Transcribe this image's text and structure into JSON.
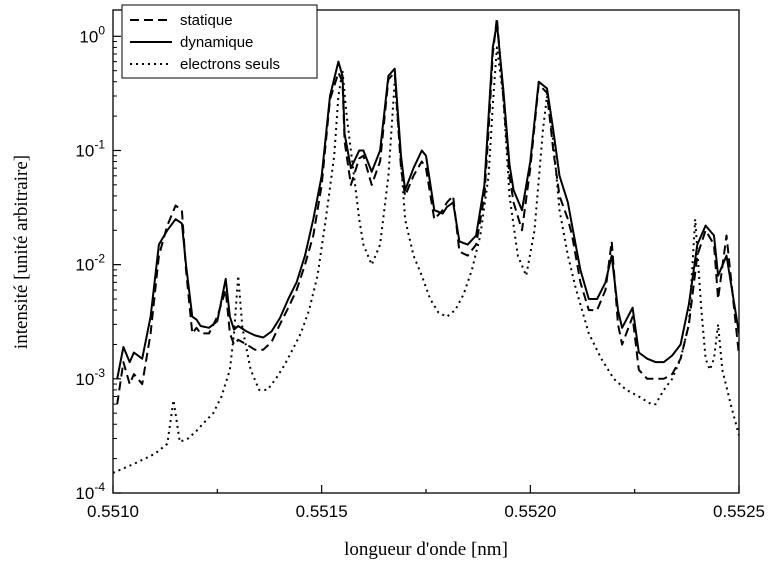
{
  "chart_data": {
    "type": "line",
    "xlabel": "longueur d'onde [nm]",
    "ylabel": "intensité [unité arbitraire]",
    "xlim": [
      0.551,
      0.5525
    ],
    "ylim": [
      0.0001,
      1.7
    ],
    "yscale": "log",
    "x_ticks": [
      0.551,
      0.5515,
      0.552,
      0.5525
    ],
    "x_tick_labels": [
      "0.5510",
      "0.5515",
      "0.5520",
      "0.5525"
    ],
    "y_ticks": [
      {
        "value": 0.0001,
        "base": "10",
        "exp": "-4"
      },
      {
        "value": 0.001,
        "base": "10",
        "exp": "-3"
      },
      {
        "value": 0.01,
        "base": "10",
        "exp": "-2"
      },
      {
        "value": 0.1,
        "base": "10",
        "exp": "-1"
      },
      {
        "value": 1,
        "base": "10",
        "exp": "0"
      }
    ],
    "legend_position": "top-left",
    "grid": false,
    "series": [
      {
        "name": "statique",
        "style": "dashed",
        "color": "#000000",
        "x": [
          0.55101,
          0.551025,
          0.55104,
          0.55105,
          0.55107,
          0.55109,
          0.55111,
          0.55113,
          0.55115,
          0.551165,
          0.551175,
          0.55119,
          0.5512,
          0.55121,
          0.55123,
          0.55125,
          0.55127,
          0.55128,
          0.55129,
          0.5513,
          0.55132,
          0.55134,
          0.55136,
          0.55138,
          0.5514,
          0.55142,
          0.55144,
          0.55146,
          0.55148,
          0.5515,
          0.55152,
          0.55154,
          0.55155,
          0.551555,
          0.55157,
          0.55159,
          0.5516,
          0.55162,
          0.55164,
          0.55166,
          0.551675,
          0.55169,
          0.5517,
          0.55172,
          0.55174,
          0.55175,
          0.55177,
          0.55179,
          0.5518,
          0.551815,
          0.55183,
          0.55185,
          0.55187,
          0.55189,
          0.5519,
          0.55191,
          0.55192,
          0.551935,
          0.55195,
          0.55196,
          0.55198,
          0.552,
          0.55202,
          0.55204,
          0.552055,
          0.55207,
          0.55209,
          0.5521,
          0.55212,
          0.55214,
          0.55216,
          0.55218,
          0.552195,
          0.55221,
          0.55222,
          0.552245,
          0.55226,
          0.55228,
          0.5523,
          0.55232,
          0.55234,
          0.55236,
          0.55238,
          0.5524,
          0.55242,
          0.55244,
          0.55245,
          0.55247,
          0.5525
        ],
        "y": [
          0.0006,
          0.0014,
          0.0009,
          0.0011,
          0.0009,
          0.0025,
          0.012,
          0.022,
          0.033,
          0.03,
          0.009,
          0.0025,
          0.0028,
          0.0025,
          0.0025,
          0.0035,
          0.006,
          0.0025,
          0.002,
          0.0022,
          0.002,
          0.0018,
          0.0018,
          0.0021,
          0.003,
          0.0042,
          0.006,
          0.01,
          0.018,
          0.05,
          0.28,
          0.48,
          0.4,
          0.12,
          0.05,
          0.085,
          0.09,
          0.05,
          0.08,
          0.42,
          0.48,
          0.07,
          0.04,
          0.06,
          0.08,
          0.07,
          0.025,
          0.03,
          0.035,
          0.04,
          0.013,
          0.012,
          0.015,
          0.04,
          0.15,
          0.7,
          1.45,
          0.3,
          0.06,
          0.035,
          0.02,
          0.07,
          0.38,
          0.32,
          0.1,
          0.04,
          0.025,
          0.018,
          0.007,
          0.004,
          0.004,
          0.006,
          0.016,
          0.003,
          0.002,
          0.0035,
          0.0012,
          0.001,
          0.001,
          0.001,
          0.0011,
          0.0015,
          0.003,
          0.012,
          0.02,
          0.015,
          0.005,
          0.018,
          0.0016
        ]
      },
      {
        "name": "dynamique",
        "style": "solid",
        "color": "#000000",
        "x": [
          0.55101,
          0.551025,
          0.55104,
          0.55105,
          0.55107,
          0.55109,
          0.55111,
          0.55113,
          0.55115,
          0.551165,
          0.551175,
          0.55119,
          0.5512,
          0.55121,
          0.55123,
          0.55125,
          0.55127,
          0.55128,
          0.55129,
          0.5513,
          0.55132,
          0.55134,
          0.55136,
          0.55138,
          0.5514,
          0.55142,
          0.55144,
          0.55146,
          0.55148,
          0.5515,
          0.55152,
          0.55154,
          0.55155,
          0.551555,
          0.55157,
          0.55159,
          0.5516,
          0.55162,
          0.55164,
          0.55166,
          0.551675,
          0.55169,
          0.5517,
          0.55172,
          0.55174,
          0.55175,
          0.55177,
          0.55179,
          0.5518,
          0.551815,
          0.55183,
          0.55185,
          0.55187,
          0.55189,
          0.5519,
          0.55191,
          0.55192,
          0.551935,
          0.55195,
          0.55196,
          0.55198,
          0.552,
          0.55202,
          0.55204,
          0.552055,
          0.55207,
          0.55209,
          0.5521,
          0.55212,
          0.55214,
          0.55216,
          0.55218,
          0.552195,
          0.55221,
          0.55222,
          0.552245,
          0.55226,
          0.55228,
          0.5523,
          0.55232,
          0.55234,
          0.55236,
          0.55238,
          0.5524,
          0.55242,
          0.55244,
          0.55245,
          0.55247,
          0.5525
        ],
        "y": [
          0.001,
          0.0019,
          0.0014,
          0.0017,
          0.0015,
          0.0035,
          0.015,
          0.02,
          0.025,
          0.023,
          0.01,
          0.0035,
          0.0033,
          0.0029,
          0.0028,
          0.0032,
          0.0075,
          0.0035,
          0.0027,
          0.0029,
          0.0026,
          0.0024,
          0.0023,
          0.0026,
          0.0034,
          0.005,
          0.007,
          0.012,
          0.025,
          0.06,
          0.3,
          0.6,
          0.45,
          0.14,
          0.07,
          0.1,
          0.1,
          0.065,
          0.1,
          0.45,
          0.52,
          0.09,
          0.045,
          0.07,
          0.1,
          0.09,
          0.03,
          0.028,
          0.032,
          0.035,
          0.016,
          0.015,
          0.018,
          0.05,
          0.2,
          0.8,
          1.3,
          0.35,
          0.075,
          0.045,
          0.03,
          0.08,
          0.4,
          0.35,
          0.15,
          0.06,
          0.035,
          0.022,
          0.009,
          0.005,
          0.005,
          0.007,
          0.012,
          0.004,
          0.0028,
          0.0042,
          0.0017,
          0.0015,
          0.0014,
          0.0014,
          0.0016,
          0.002,
          0.0045,
          0.015,
          0.022,
          0.018,
          0.008,
          0.012,
          0.0025
        ]
      },
      {
        "name": "electrons seuls",
        "style": "dotted",
        "color": "#000000",
        "x": [
          0.551,
          0.55105,
          0.5511,
          0.55113,
          0.551145,
          0.55116,
          0.55118,
          0.5512,
          0.55122,
          0.55124,
          0.55126,
          0.55128,
          0.55129,
          0.5513,
          0.55131,
          0.55133,
          0.55135,
          0.55137,
          0.55139,
          0.55141,
          0.55143,
          0.55145,
          0.55147,
          0.55149,
          0.55151,
          0.55153,
          0.55154,
          0.55155,
          0.55156,
          0.55158,
          0.55159,
          0.5516,
          0.55162,
          0.55164,
          0.55166,
          0.551675,
          0.55169,
          0.5517,
          0.55172,
          0.55174,
          0.55176,
          0.55178,
          0.5518,
          0.55182,
          0.55184,
          0.55186,
          0.55188,
          0.5519,
          0.55191,
          0.55192,
          0.551935,
          0.55195,
          0.55197,
          0.55199,
          0.55201,
          0.55203,
          0.55204,
          0.552055,
          0.55207,
          0.55209,
          0.55211,
          0.55214,
          0.55217,
          0.5522,
          0.55223,
          0.55226,
          0.55229,
          0.5523,
          0.55232,
          0.55234,
          0.55236,
          0.55238,
          0.552395,
          0.55241,
          0.55242,
          0.55243,
          0.55244,
          0.55245,
          0.55246,
          0.55248,
          0.5525
        ],
        "y": [
          0.00015,
          0.00018,
          0.00022,
          0.00027,
          0.00065,
          0.00028,
          0.0003,
          0.00035,
          0.00042,
          0.0005,
          0.0007,
          0.0012,
          0.0025,
          0.008,
          0.0028,
          0.0012,
          0.0008,
          0.0008,
          0.001,
          0.0013,
          0.0018,
          0.0025,
          0.004,
          0.008,
          0.025,
          0.09,
          0.3,
          0.5,
          0.2,
          0.05,
          0.025,
          0.015,
          0.01,
          0.015,
          0.06,
          0.4,
          0.08,
          0.025,
          0.012,
          0.008,
          0.005,
          0.0038,
          0.0035,
          0.004,
          0.0055,
          0.009,
          0.018,
          0.06,
          0.25,
          0.8,
          0.3,
          0.04,
          0.012,
          0.008,
          0.02,
          0.15,
          0.3,
          0.12,
          0.03,
          0.012,
          0.006,
          0.0025,
          0.0015,
          0.001,
          0.0008,
          0.0007,
          0.0006,
          0.0006,
          0.0008,
          0.001,
          0.0015,
          0.003,
          0.025,
          0.004,
          0.0015,
          0.0012,
          0.0015,
          0.003,
          0.0012,
          0.0006,
          0.00032
        ]
      }
    ]
  }
}
